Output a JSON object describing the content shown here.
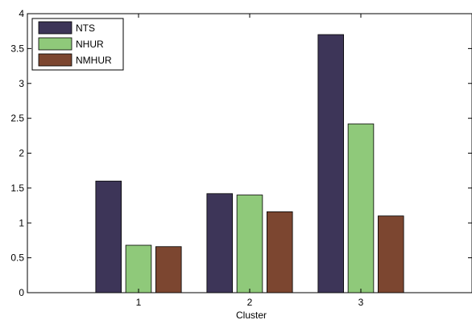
{
  "chart_data": {
    "type": "bar",
    "title": "",
    "xlabel": "Cluster",
    "ylabel": "",
    "categories": [
      "1",
      "2",
      "3"
    ],
    "ylim": [
      0,
      4
    ],
    "yticks": [
      "0",
      "0.5",
      "1",
      "1.5",
      "2",
      "2.5",
      "3",
      "3.5",
      "4"
    ],
    "grid": false,
    "legend_position": "top-left",
    "series": [
      {
        "name": "NTS",
        "color": "#3d3558",
        "values": [
          1.6,
          1.42,
          3.7
        ]
      },
      {
        "name": "NHUR",
        "color": "#8fc97a",
        "values": [
          0.68,
          1.4,
          2.42
        ]
      },
      {
        "name": "NMHUR",
        "color": "#7c4630",
        "values": [
          0.66,
          1.16,
          1.1
        ]
      }
    ]
  }
}
